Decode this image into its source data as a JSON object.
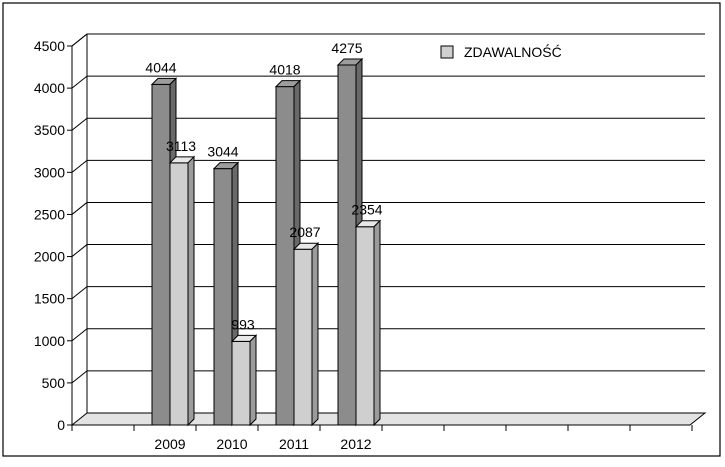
{
  "chart_data": {
    "type": "bar",
    "categories": [
      "2009",
      "2010",
      "2011",
      "2012"
    ],
    "series": [
      {
        "name": "",
        "values": [
          4044,
          3044,
          4018,
          4275
        ],
        "color": "#8c8c8c"
      },
      {
        "name": "ZDAWALNOŚĆ",
        "values": [
          3113,
          993,
          2087,
          2354
        ],
        "color": "#cfcfcf"
      }
    ],
    "yticks": [
      "0",
      "500",
      "1000",
      "1500",
      "2000",
      "2500",
      "3000",
      "3500",
      "4000",
      "4500"
    ],
    "ylim": [
      0,
      4500
    ],
    "grid": true,
    "legend_position": "top-right",
    "style": "3d-bar"
  }
}
